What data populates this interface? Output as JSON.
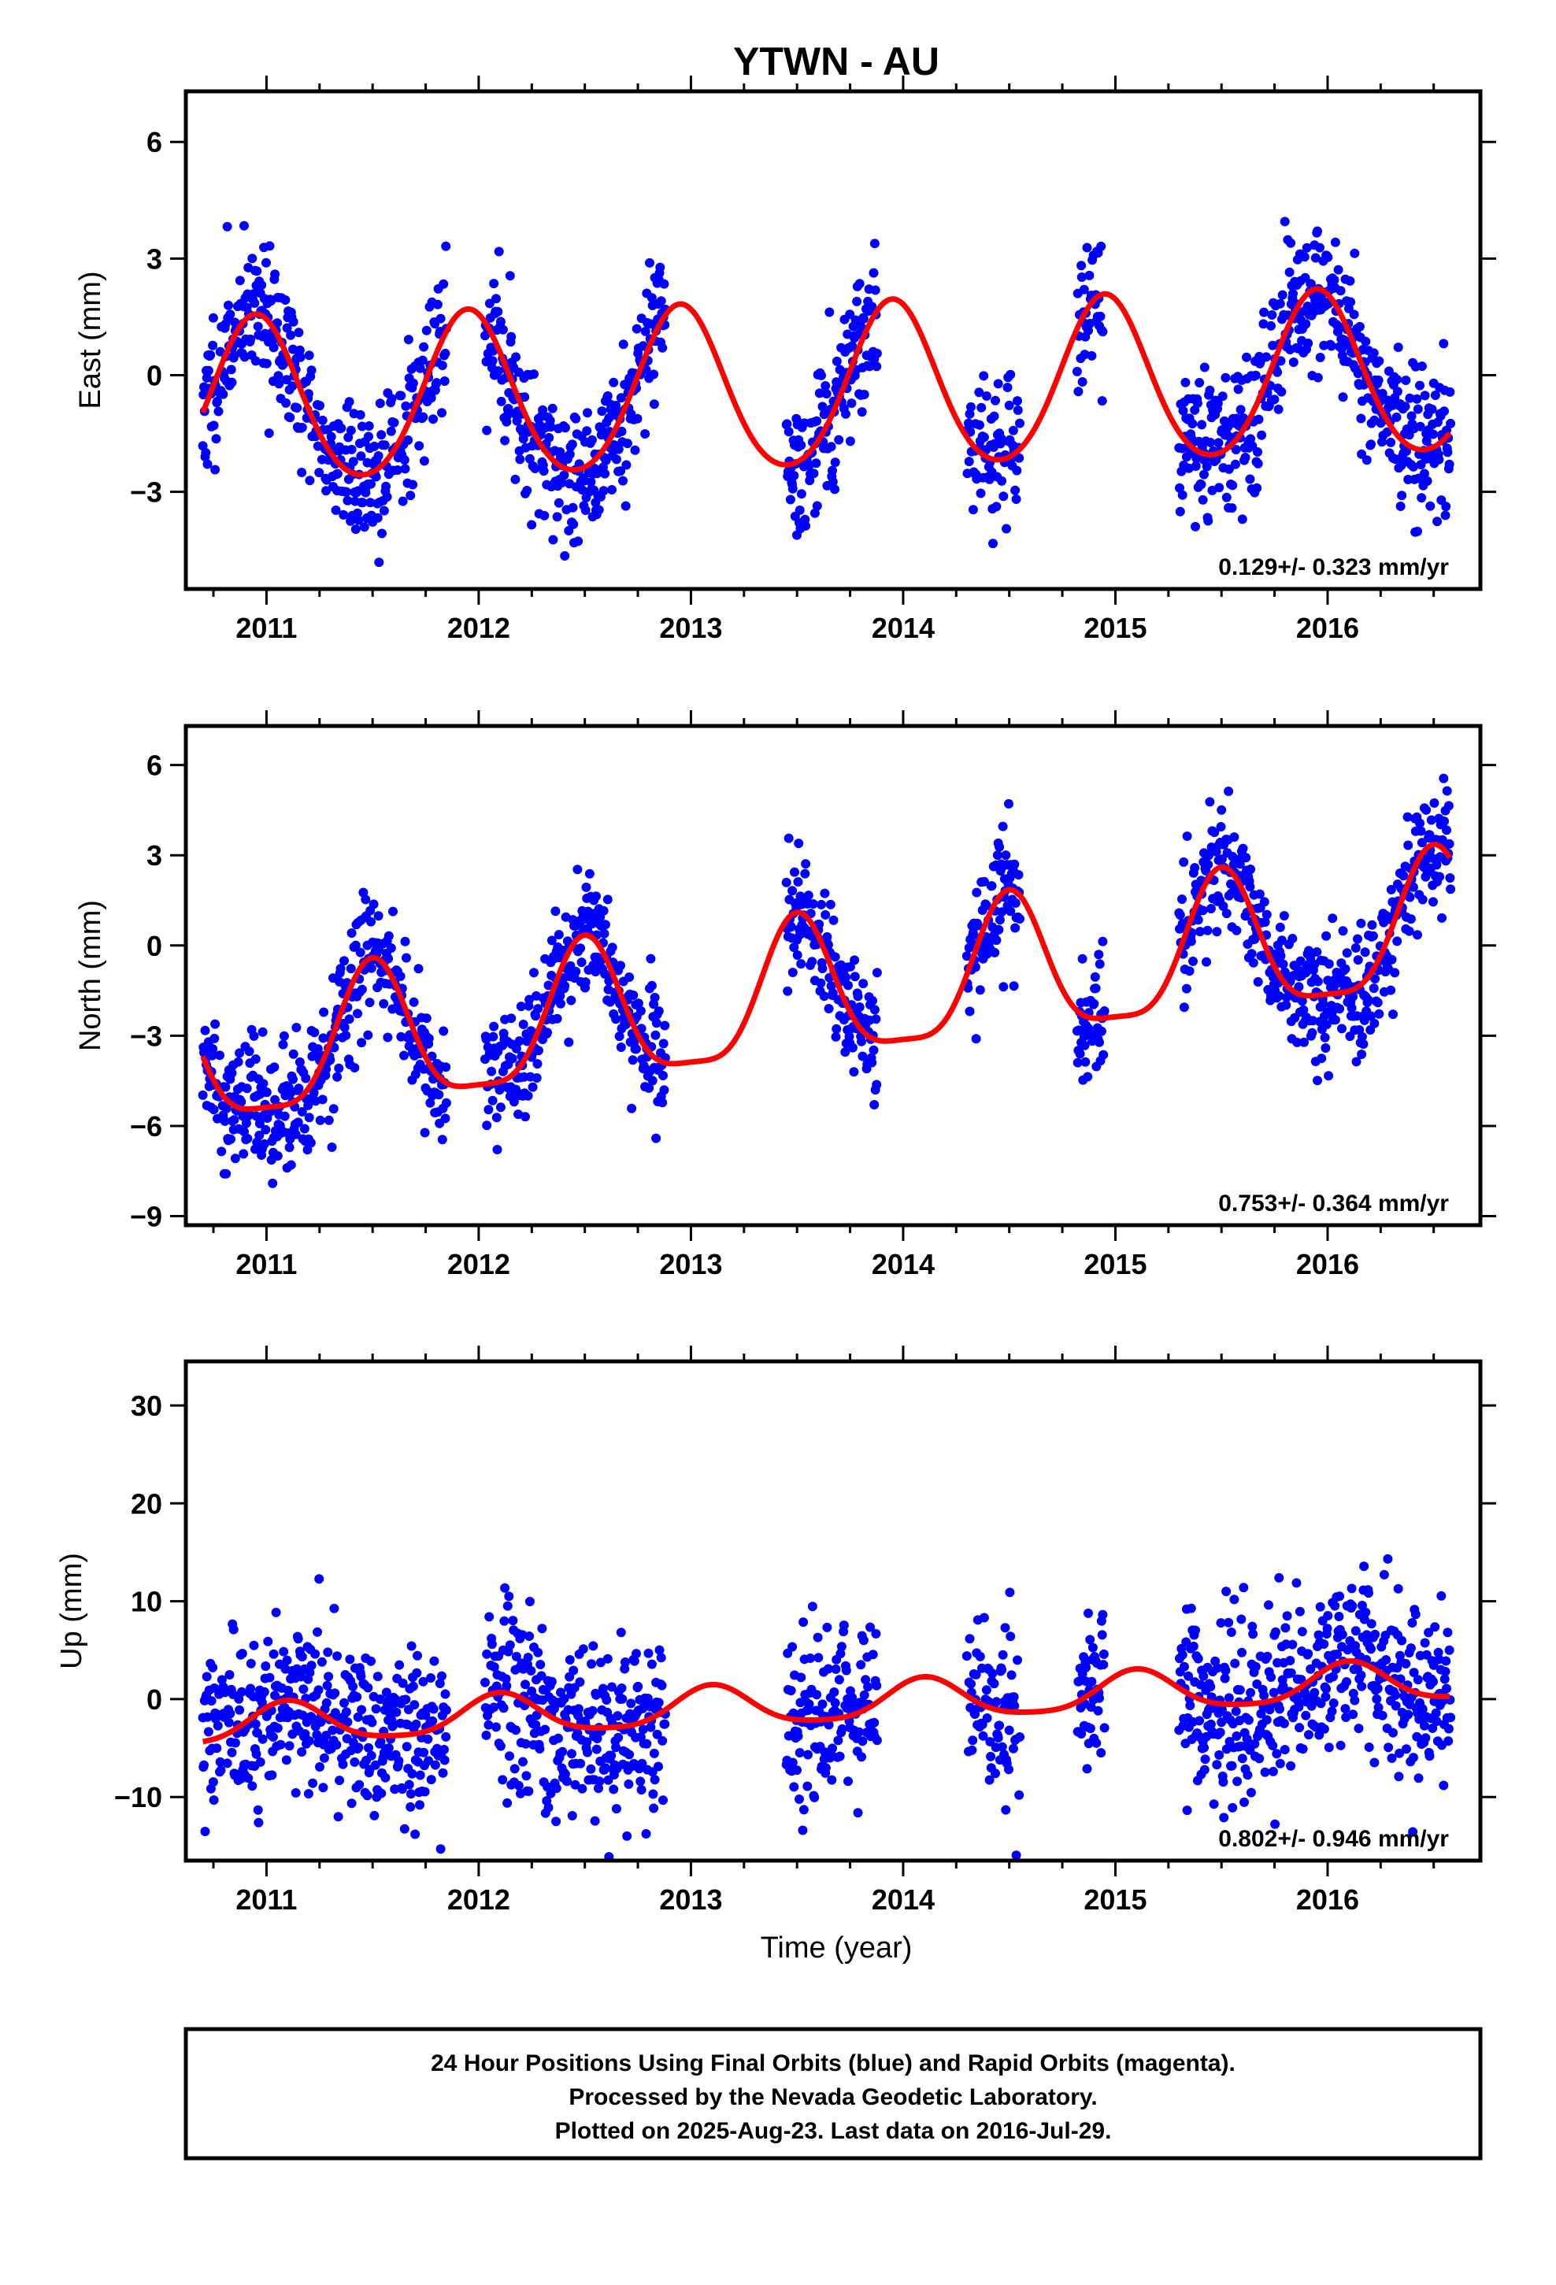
{
  "title": "YTWN - AU",
  "xlabel": "Time (year)",
  "caption": [
    "24 Hour Positions Using Final Orbits (blue) and Rapid Orbits (magenta).",
    "Processed by the Nevada Geodetic Laboratory.",
    "Plotted on 2025-Aug-23. Last data on 2016-Jul-29."
  ],
  "colors": {
    "data": "#0000ff",
    "fit": "#ff0000",
    "frame": "#000000"
  },
  "chart_data": [
    {
      "type": "scatter",
      "ylabel": "East (mm)",
      "rate_label": "0.129+/- 0.323 mm/yr",
      "xlim": [
        2010.62,
        2016.72
      ],
      "ylim": [
        -5.5,
        7.3
      ],
      "x_ticks": [
        2011,
        2012,
        2013,
        2014,
        2015,
        2016
      ],
      "y_ticks": [
        -3,
        0,
        3,
        6
      ],
      "y_tick_labels": [
        "−3",
        "0",
        "3",
        "6"
      ],
      "fit": {
        "annual_amp": 2.1,
        "phase_year": 2010.95,
        "semi_amp": 0.2,
        "rate": 0.129,
        "offset": -0.4
      },
      "segments": [
        [
          2010.7,
          2011.85,
          0.9
        ],
        [
          2012.03,
          2012.88,
          0.95
        ],
        [
          2013.45,
          2013.88,
          0.95
        ],
        [
          2014.3,
          2014.55,
          0.85
        ],
        [
          2014.82,
          2014.95,
          0.9
        ],
        [
          2015.3,
          2016.58,
          0.95
        ]
      ],
      "noise": 0.9,
      "seed": 11
    },
    {
      "type": "scatter",
      "ylabel": "North (mm)",
      "rate_label": "0.753+/- 0.364 mm/yr",
      "xlim": [
        2010.62,
        2016.72
      ],
      "ylim": [
        -9.3,
        7.3
      ],
      "x_ticks": [
        2011,
        2012,
        2013,
        2014,
        2015,
        2016
      ],
      "y_ticks": [
        -9,
        -6,
        -3,
        0,
        3,
        6
      ],
      "y_tick_labels": [
        "−9",
        "−6",
        "−3",
        "0",
        "3",
        "6"
      ],
      "fit": {
        "annual_amp": 2.3,
        "phase_year": 2010.5,
        "semi_amp": 0.6,
        "rate": 0.753,
        "offset": -1.8
      },
      "segments": [
        [
          2010.7,
          2011.85,
          0.9
        ],
        [
          2012.03,
          2012.88,
          0.95
        ],
        [
          2013.45,
          2013.88,
          0.95
        ],
        [
          2014.3,
          2014.55,
          0.85
        ],
        [
          2014.82,
          2014.95,
          0.9
        ],
        [
          2015.3,
          2016.58,
          0.95
        ]
      ],
      "noise": 1.0,
      "seed": 23
    },
    {
      "type": "scatter",
      "ylabel": "Up (mm)",
      "rate_label": "0.802+/- 0.946 mm/yr",
      "xlim": [
        2010.62,
        2016.72
      ],
      "ylim": [
        -16.5,
        34.5
      ],
      "x_ticks": [
        2011,
        2012,
        2013,
        2014,
        2015,
        2016
      ],
      "y_ticks": [
        -10,
        0,
        10,
        20,
        30
      ],
      "y_tick_labels": [
        "−10",
        "0",
        "10",
        "20",
        "30"
      ],
      "fit": {
        "annual_amp": 2.0,
        "phase_year": 2011.1,
        "semi_amp": 0.4,
        "rate": 0.802,
        "offset": -0.6
      },
      "segments": [
        [
          2010.7,
          2011.85,
          0.9
        ],
        [
          2012.03,
          2012.88,
          0.95
        ],
        [
          2013.45,
          2013.88,
          0.95
        ],
        [
          2014.3,
          2014.55,
          0.85
        ],
        [
          2014.82,
          2014.95,
          0.9
        ],
        [
          2015.3,
          2016.58,
          0.95
        ]
      ],
      "noise": 4.5,
      "seed": 37
    }
  ]
}
